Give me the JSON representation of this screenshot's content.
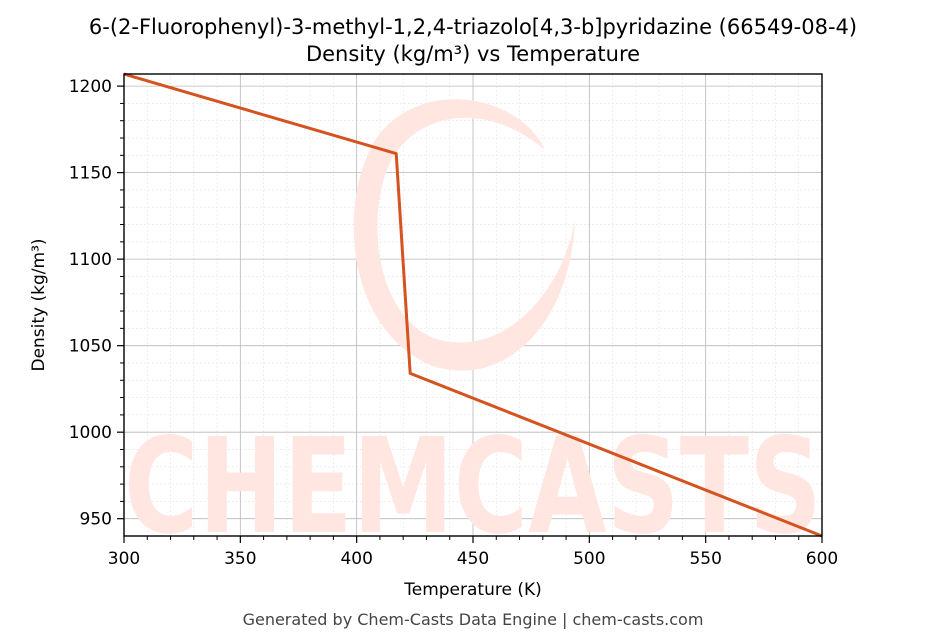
{
  "chart_data": {
    "type": "line",
    "title": "6-(2-Fluorophenyl)-3-methyl-1,2,4-triazolo[4,3-b]pyridazine (66549-08-4)",
    "subtitle": "Density (kg/m³) vs Temperature",
    "xlabel": "Temperature (K)",
    "ylabel": "Density (kg/m³)",
    "xlim": [
      300,
      600
    ],
    "ylim": [
      940,
      1207
    ],
    "xticks": [
      300,
      350,
      400,
      450,
      500,
      550,
      600
    ],
    "yticks": [
      950,
      1000,
      1050,
      1100,
      1150,
      1200
    ],
    "grid": true,
    "series": [
      {
        "color": "#d4531f",
        "points": [
          {
            "x": 300,
            "y": 1207
          },
          {
            "x": 417,
            "y": 1161
          },
          {
            "x": 423,
            "y": 1034
          },
          {
            "x": 600,
            "y": 940
          }
        ]
      }
    ]
  },
  "watermark": {
    "text": "CHEMCASTS",
    "color": "#ffe6e1"
  },
  "footer": "Generated by Chem-Casts Data Engine | chem-casts.com"
}
